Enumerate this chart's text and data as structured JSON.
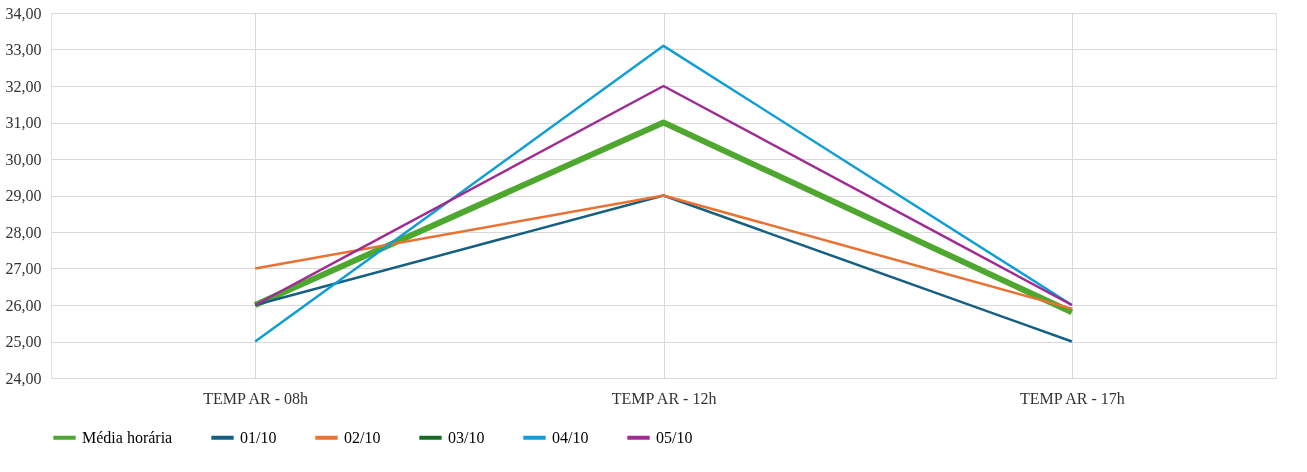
{
  "chart_data": {
    "type": "line",
    "categories": [
      "TEMP AR - 08h",
      "TEMP AR - 12h",
      "TEMP AR - 17h"
    ],
    "series": [
      {
        "name": "Média horária",
        "color": "#4ea72e",
        "values": [
          26.0,
          31.0,
          25.8
        ]
      },
      {
        "name": "01/10",
        "color": "#156082",
        "values": [
          26.0,
          29.0,
          25.0
        ]
      },
      {
        "name": "02/10",
        "color": "#e97132",
        "values": [
          27.0,
          29.0,
          25.9
        ]
      },
      {
        "name": "03/10",
        "color": "#196b24",
        "values": [
          null,
          null,
          null
        ]
      },
      {
        "name": "04/10",
        "color": "#0f9ed5",
        "values": [
          25.0,
          33.1,
          26.0
        ]
      },
      {
        "name": "05/10",
        "color": "#a02b93",
        "values": [
          26.0,
          32.0,
          26.0
        ]
      }
    ],
    "ylim": [
      24,
      34
    ],
    "yticks": [
      {
        "value": 24,
        "label": "24,00"
      },
      {
        "value": 25,
        "label": "25,00"
      },
      {
        "value": 26,
        "label": "26,00"
      },
      {
        "value": 27,
        "label": "27,00"
      },
      {
        "value": 28,
        "label": "28,00"
      },
      {
        "value": 29,
        "label": "29,00"
      },
      {
        "value": 30,
        "label": "30,00"
      },
      {
        "value": 31,
        "label": "31,00"
      },
      {
        "value": 32,
        "label": "32,00"
      },
      {
        "value": 33,
        "label": "33,00"
      },
      {
        "value": 34,
        "label": "34,00"
      }
    ],
    "grid": true,
    "legend": "bottom",
    "marker": "none",
    "line_style": "solid"
  }
}
